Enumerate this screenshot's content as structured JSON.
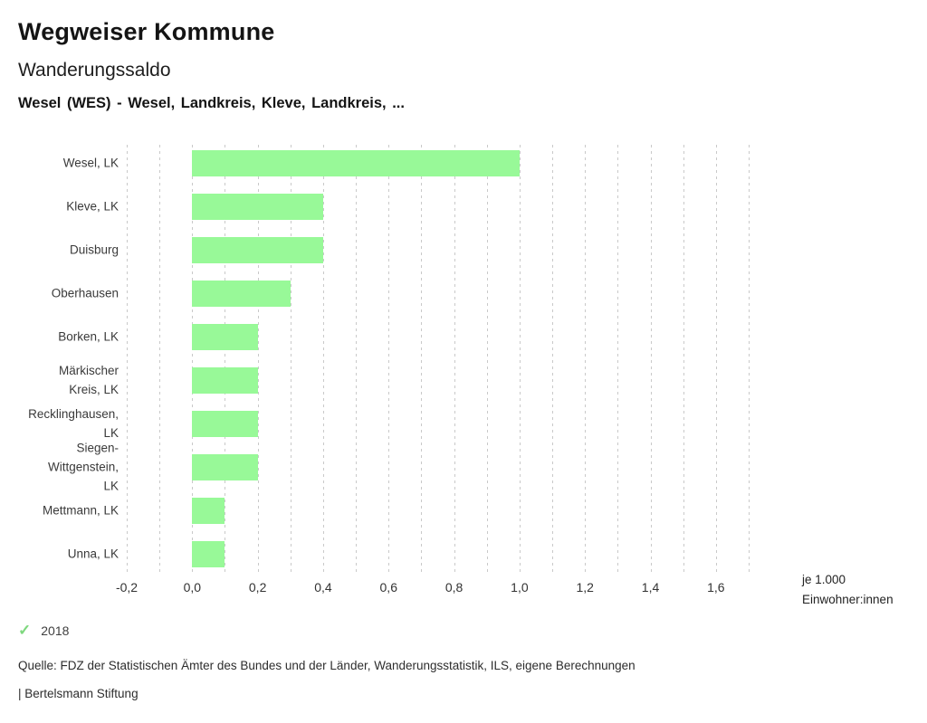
{
  "header": {
    "title": "Wegweiser Kommune",
    "subtitle": "Wanderungssaldo",
    "region_line": "Wesel (WES) - Wesel, Landkreis, Kleve, Landkreis, ..."
  },
  "chart_data": {
    "type": "bar",
    "orientation": "horizontal",
    "title": "Wanderungssaldo",
    "xlabel": "je 1.000 Einwohner:innen",
    "categories": [
      "Wesel, LK",
      "Kleve, LK",
      "Duisburg",
      "Oberhausen",
      "Borken, LK",
      "Märkischer Kreis, LK",
      "Recklinghausen, LK",
      "Siegen-Wittgenstein, LK",
      "Mettmann, LK",
      "Unna, LK"
    ],
    "category_label_lines": [
      [
        "Wesel, LK"
      ],
      [
        "Kleve, LK"
      ],
      [
        "Duisburg"
      ],
      [
        "Oberhausen"
      ],
      [
        "Borken, LK"
      ],
      [
        "Märkischer",
        "Kreis, LK"
      ],
      [
        "Recklinghausen,",
        "LK"
      ],
      [
        "Siegen-",
        "Wittgenstein,",
        "LK"
      ],
      [
        "Mettmann, LK"
      ],
      [
        "Unna, LK"
      ]
    ],
    "series": [
      {
        "name": "2018",
        "values": [
          1.0,
          0.4,
          0.4,
          0.3,
          0.2,
          0.2,
          0.2,
          0.2,
          0.1,
          0.1
        ]
      }
    ],
    "xlim": [
      -0.2,
      1.7
    ],
    "grid_step": 0.1,
    "grid": true,
    "x_ticks": [
      {
        "value": -0.2,
        "label": "-0,2"
      },
      {
        "value": 0.0,
        "label": "0,0"
      },
      {
        "value": 0.2,
        "label": "0,2"
      },
      {
        "value": 0.4,
        "label": "0,4"
      },
      {
        "value": 0.6,
        "label": "0,6"
      },
      {
        "value": 0.8,
        "label": "0,8"
      },
      {
        "value": 1.0,
        "label": "1,0"
      },
      {
        "value": 1.2,
        "label": "1,2"
      },
      {
        "value": 1.4,
        "label": "1,4"
      },
      {
        "value": 1.6,
        "label": "1,6"
      }
    ],
    "unit_label_lines": [
      "je 1.000",
      "Einwohner:innen"
    ],
    "bar_color": "#98f998",
    "gridline_color": "#c9c9c9",
    "legend_position": "bottom-left"
  },
  "legend": {
    "check_glyph": "✓",
    "check_color": "#7ed87e",
    "year": "2018"
  },
  "footer": {
    "source": "Quelle: FDZ der Statistischen Ämter des Bundes und der Länder, Wanderungsstatistik, ILS, eigene Berechnungen",
    "brand": "| Bertelsmann Stiftung"
  }
}
